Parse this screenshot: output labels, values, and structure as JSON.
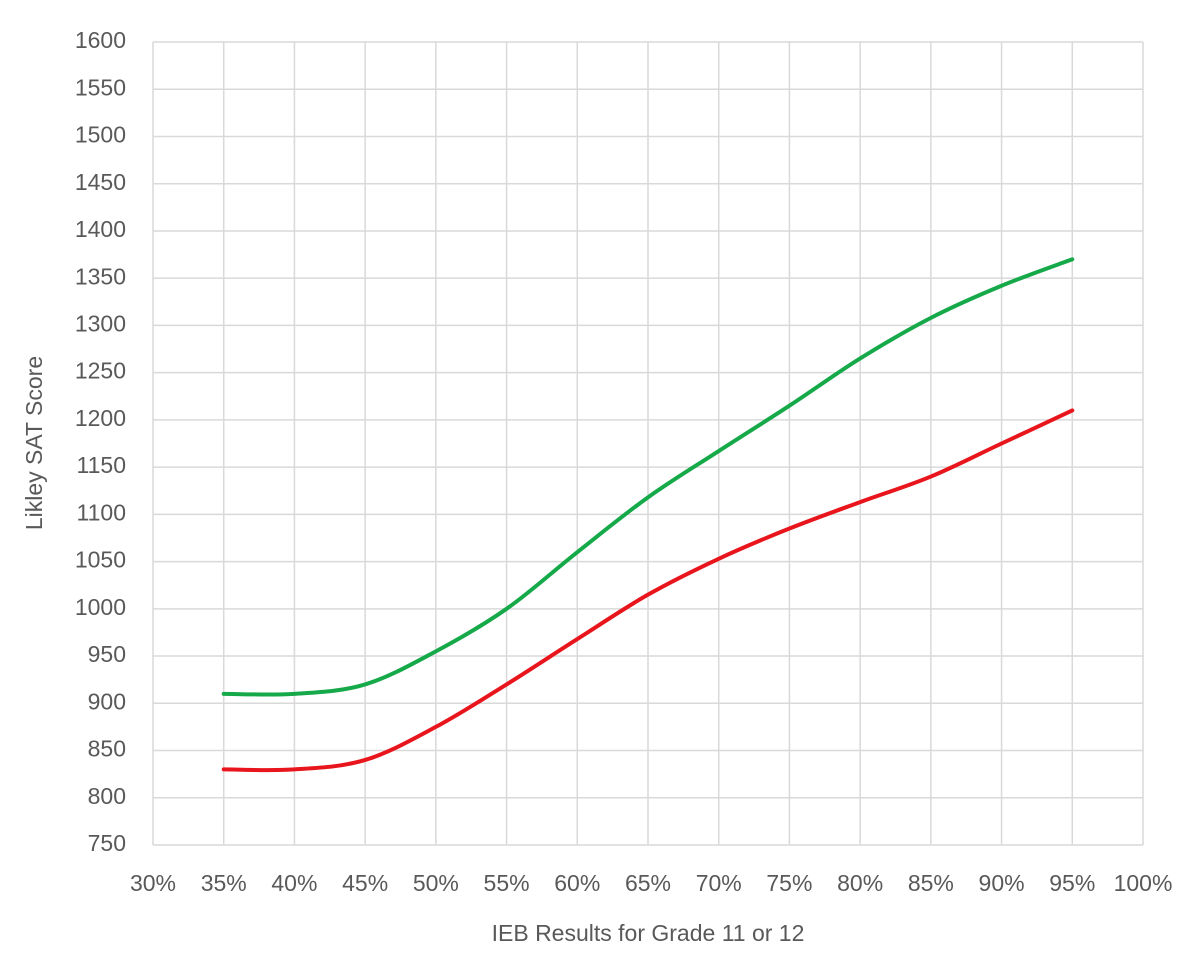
{
  "chart_data": {
    "type": "line",
    "x_label": "IEB Results for Grade 11 or 12",
    "y_label": "Likley SAT Score",
    "x": [
      35,
      40,
      45,
      50,
      55,
      60,
      65,
      70,
      75,
      80,
      85,
      90,
      95
    ],
    "series": [
      {
        "color": "#16a94a",
        "values": [
          910,
          910,
          920,
          955,
          1000,
          1060,
          1118,
          1167,
          1215,
          1265,
          1308,
          1342,
          1370
        ]
      },
      {
        "color": "#e8151c",
        "values": [
          830,
          830,
          840,
          875,
          920,
          968,
          1015,
          1053,
          1085,
          1113,
          1140,
          1175,
          1210
        ]
      }
    ],
    "xlim": [
      30,
      100
    ],
    "xticks": [
      {
        "value": 30,
        "label": "30%"
      },
      {
        "value": 35,
        "label": "35%"
      },
      {
        "value": 40,
        "label": "40%"
      },
      {
        "value": 45,
        "label": "45%"
      },
      {
        "value": 50,
        "label": "50%"
      },
      {
        "value": 55,
        "label": "55%"
      },
      {
        "value": 60,
        "label": "60%"
      },
      {
        "value": 65,
        "label": "65%"
      },
      {
        "value": 70,
        "label": "70%"
      },
      {
        "value": 75,
        "label": "75%"
      },
      {
        "value": 80,
        "label": "80%"
      },
      {
        "value": 85,
        "label": "85%"
      },
      {
        "value": 90,
        "label": "90%"
      },
      {
        "value": 95,
        "label": "95%"
      },
      {
        "value": 100,
        "label": "100%"
      }
    ],
    "ylim": [
      750,
      1600
    ],
    "yticks": [
      750,
      800,
      850,
      900,
      950,
      1000,
      1050,
      1100,
      1150,
      1200,
      1250,
      1300,
      1350,
      1400,
      1450,
      1500,
      1550,
      1600
    ],
    "grid": true
  }
}
